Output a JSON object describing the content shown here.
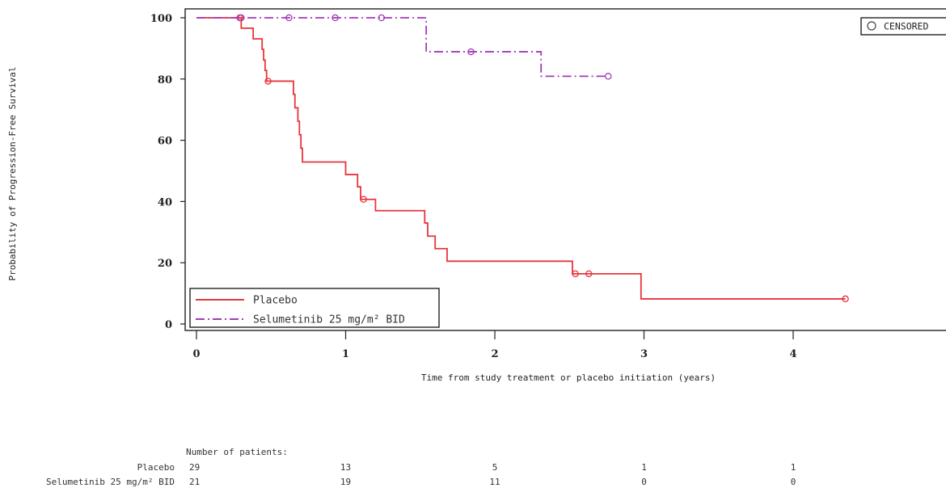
{
  "chart_data": {
    "type": "line",
    "title": "",
    "xlabel": "Time from study treatment or placebo initiation (years)",
    "ylabel": "Probability of Progression-Free Survival",
    "xlim": [
      0,
      5
    ],
    "ylim": [
      0,
      100
    ],
    "x_ticks": [
      0,
      1,
      2,
      3,
      4
    ],
    "y_ticks": [
      0,
      20,
      40,
      60,
      80,
      100
    ],
    "grid": false,
    "legend_position": "bottom-left",
    "censored_label": "CENSORED",
    "censored_legend_position": "top-right",
    "series": [
      {
        "name": "Placebo",
        "color": "#e8343b",
        "style": "solid",
        "steps": [
          [
            0,
            100
          ],
          [
            0.3,
            96.6
          ],
          [
            0.38,
            93.1
          ],
          [
            0.44,
            89.7
          ],
          [
            0.45,
            86.2
          ],
          [
            0.46,
            82.8
          ],
          [
            0.47,
            79.3
          ],
          [
            0.65,
            75.0
          ],
          [
            0.66,
            70.6
          ],
          [
            0.68,
            66.2
          ],
          [
            0.69,
            61.8
          ],
          [
            0.7,
            57.4
          ],
          [
            0.71,
            52.9
          ],
          [
            1.0,
            48.8
          ],
          [
            1.08,
            44.8
          ],
          [
            1.1,
            40.7
          ],
          [
            1.2,
            37.0
          ],
          [
            1.53,
            33.0
          ],
          [
            1.55,
            28.7
          ],
          [
            1.6,
            24.6
          ],
          [
            1.68,
            20.5
          ],
          [
            2.52,
            16.4
          ],
          [
            2.98,
            8.2
          ]
        ],
        "end_x": 4.35,
        "censored": [
          [
            0.29,
            100
          ],
          [
            0.48,
            79.3
          ],
          [
            1.12,
            40.7
          ],
          [
            2.54,
            16.4
          ],
          [
            2.63,
            16.4
          ],
          [
            4.35,
            8.2
          ]
        ]
      },
      {
        "name": "Selumetinib 25 mg/m² BID",
        "color": "#a23bb7",
        "style": "dashdot",
        "steps": [
          [
            0,
            100
          ],
          [
            1.54,
            88.9
          ],
          [
            2.31,
            80.9
          ]
        ],
        "end_x": 2.76,
        "censored": [
          [
            0.3,
            100
          ],
          [
            0.62,
            100
          ],
          [
            0.93,
            100
          ],
          [
            1.24,
            100
          ],
          [
            1.84,
            88.9
          ],
          [
            2.76,
            80.9
          ]
        ]
      }
    ],
    "risk_table": {
      "header": "Number of patients:",
      "times": [
        0,
        1,
        2,
        3,
        4
      ],
      "rows": [
        {
          "label": "Placebo",
          "counts": [
            "29",
            "13",
            "5",
            "1",
            "1"
          ]
        },
        {
          "label": "Selumetinib 25 mg/m² BID",
          "counts": [
            "21",
            "19",
            "11",
            "0",
            "0"
          ]
        }
      ]
    }
  }
}
